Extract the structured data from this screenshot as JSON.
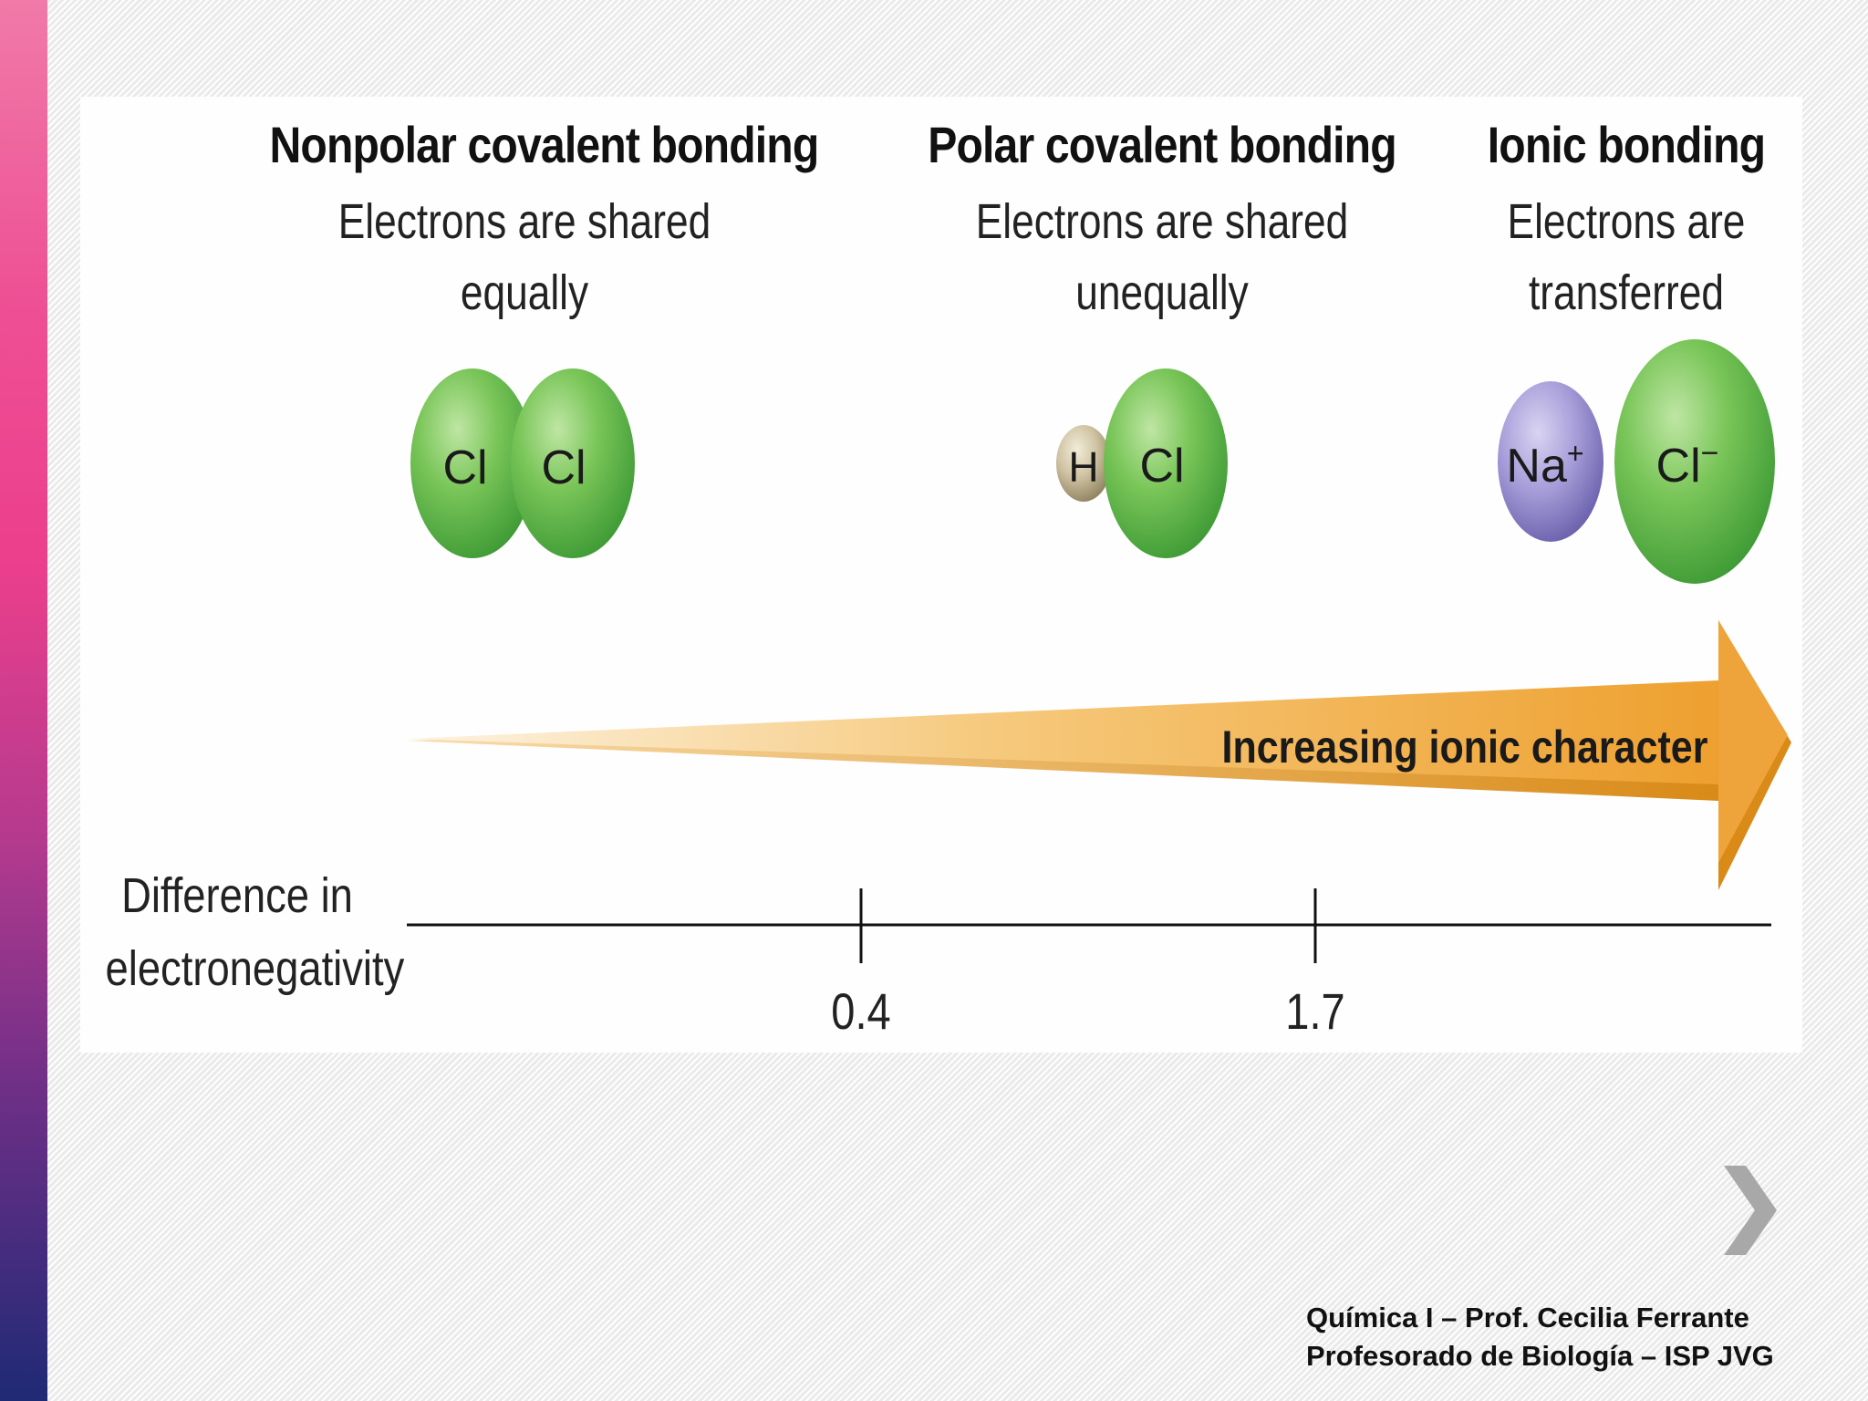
{
  "columns": [
    {
      "title": "Nonpolar covalent bonding",
      "subtitle_line1": "Electrons are shared",
      "subtitle_line2": "equally"
    },
    {
      "title": "Polar covalent bonding",
      "subtitle_line1": "Electrons are shared",
      "subtitle_line2": "unequally"
    },
    {
      "title": "Ionic bonding",
      "subtitle_line1": "Electrons are",
      "subtitle_line2": "transferred"
    }
  ],
  "molecules": {
    "cl2": {
      "atom1": "Cl",
      "atom2": "Cl"
    },
    "hcl": {
      "atom1": "H",
      "atom2": "Cl"
    },
    "nacl": {
      "cation": "Na",
      "cation_charge": "+",
      "anion": "Cl",
      "anion_charge": "−"
    }
  },
  "arrow_label": "Increasing ionic character",
  "axis": {
    "label_line1": "Difference in",
    "label_line2": "electronegativity",
    "ticks": [
      "0.4",
      "1.7"
    ]
  },
  "footer": {
    "line1": "Química I – Prof. Cecilia Ferrante",
    "line2": "Profesorado de Biología – ISP JVG"
  },
  "colors": {
    "chlorine": "#6cc04a",
    "hydrogen": "#c9bc9c",
    "sodium": "#9a90d2",
    "arrow": "#f0a83a",
    "side_bar_top": "#f07aa8",
    "side_bar_bottom": "#1f2a75"
  },
  "icons": {
    "next": "chevron-right-icon"
  }
}
